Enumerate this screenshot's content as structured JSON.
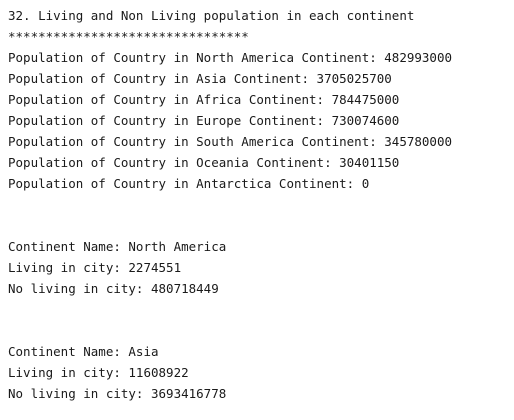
{
  "console": {
    "title": "32. Living and Non Living population in each continent",
    "separator": "********************************",
    "populations": [
      "Population of Country in North America Continent: 482993000",
      "Population of Country in Asia Continent: 3705025700",
      "Population of Country in Africa Continent: 784475000",
      "Population of Country in Europe Continent: 730074600",
      "Population of Country in South America Continent: 345780000",
      "Population of Country in Oceania Continent: 30401150",
      "Population of Country in Antarctica Continent: 0"
    ],
    "continents": [
      {
        "name_line": "Continent Name: North America",
        "living_line": "Living in city: 2274551",
        "no_living_line": "No living in city: 480718449"
      },
      {
        "name_line": "Continent Name: Asia",
        "living_line": "Living in city: 11608922",
        "no_living_line": "No living in city: 3693416778"
      }
    ]
  }
}
